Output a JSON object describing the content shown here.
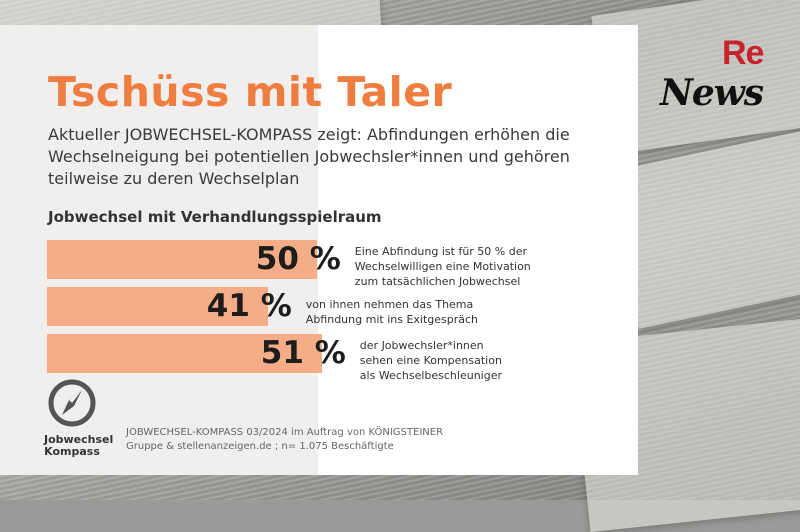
{
  "title": "Tschüss mit Taler",
  "subtitle": "Aktueller JOBWECHSEL-KOMPASS zeigt: Abfindungen erhöhen die Wechselneigung bei potentiellen Jobwechsler*innen und gehören teilweise zu deren Wechselplan",
  "section_heading": "Jobwechsel mit Verhandlungsspielraum",
  "chart_data": {
    "type": "bar",
    "orientation": "horizontal",
    "xlim": [
      0,
      100
    ],
    "unit": "%",
    "bars": [
      {
        "value": 50,
        "value_label": "50 %",
        "note": "Eine Abfindung ist für 50 % der\nWechselwilligen eine Motivation\nzum tatsächlichen Jobwechsel"
      },
      {
        "value": 41,
        "value_label": "41 %",
        "note": "von ihnen nehmen das Thema\nAbfindung mit ins Exitgespräch"
      },
      {
        "value": 51,
        "value_label": "51 %",
        "note": "der Jobwechsler*innen\nsehen eine Kompensation\nals Wechselbeschleuniger"
      }
    ],
    "bar_color": "#f4ad86"
  },
  "logo": {
    "icon": "compass-icon",
    "label": "Jobwechsel\nKompass"
  },
  "source": "JOBWECHSEL-KOMPASS 03/2024 im Auftrag von KÖNIGSTEINER Gruppe & stellenanzeigen.de ; n= 1.075 Beschäftigte",
  "brand": {
    "re": "Re",
    "news": "News"
  },
  "colors": {
    "title": "#ee7d3f",
    "brand_red": "#c8232c"
  }
}
